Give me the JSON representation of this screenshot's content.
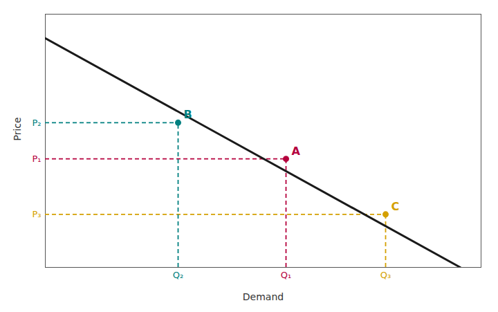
{
  "chart_data": {
    "type": "line",
    "xlabel": "Demand",
    "ylabel": "Price",
    "x": [
      0,
      10
    ],
    "values": [
      9.5,
      0
    ],
    "color": "#1a1a1a",
    "xlim": [
      0,
      10.5
    ],
    "ylim": [
      0,
      10.5
    ],
    "xticks": [],
    "yticks": [],
    "tick_labels": false,
    "annotations": [
      {
        "text": "A",
        "x": 5.8,
        "y": 4.5,
        "color": "#b5003d",
        "x_text": "Q₁",
        "y_text": "P₁"
      },
      {
        "text": "B",
        "x": 3.2,
        "y": 6.0,
        "color": "#008080",
        "x_text": "Q₂",
        "y_text": "P₂"
      },
      {
        "text": "C",
        "x": 8.2,
        "y": 2.2,
        "color": "#d4a000",
        "x_text": "Q₃",
        "y_text": "P₃"
      }
    ]
  }
}
